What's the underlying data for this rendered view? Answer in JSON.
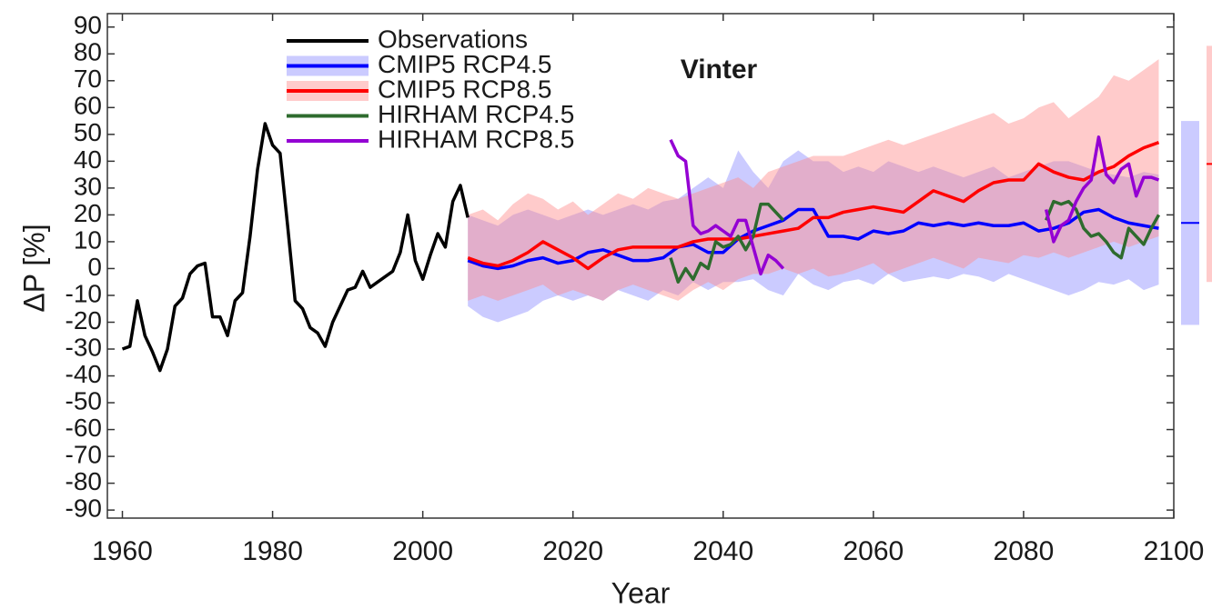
{
  "chart_data": {
    "type": "line",
    "title": "Vinter",
    "x_label": "Year",
    "y_label": "ΔP [%]",
    "xlim": [
      1958,
      2100
    ],
    "ylim": [
      -93,
      95
    ],
    "xticks": [
      1960,
      1980,
      2000,
      2020,
      2040,
      2060,
      2080,
      2100
    ],
    "yticks": [
      -90,
      -80,
      -70,
      -60,
      -50,
      -40,
      -30,
      -20,
      -10,
      0,
      10,
      20,
      30,
      40,
      50,
      60,
      70,
      80,
      90
    ],
    "legend": "upper left",
    "series": [
      {
        "name": "Observations",
        "color": "#000000",
        "x": [
          1960,
          1961,
          1962,
          1963,
          1964,
          1965,
          1966,
          1967,
          1968,
          1969,
          1970,
          1971,
          1972,
          1973,
          1974,
          1975,
          1976,
          1977,
          1978,
          1979,
          1980,
          1981,
          1982,
          1983,
          1984,
          1985,
          1986,
          1987,
          1988,
          1989,
          1990,
          1991,
          1992,
          1993,
          1994,
          1995,
          1996,
          1997,
          1998,
          1999,
          2000,
          2001,
          2002,
          2003,
          2004,
          2005,
          2006
        ],
        "values": [
          -30,
          -29,
          -12,
          -25,
          -31,
          -38,
          -30,
          -14,
          -11,
          -2,
          1,
          2,
          -18,
          -18,
          -25,
          -12,
          -9,
          12,
          37,
          54,
          46,
          43,
          16,
          -12,
          -15,
          -22,
          -24,
          -29,
          -20,
          -14,
          -8,
          -7,
          -1,
          -7,
          -5,
          -3,
          -1,
          6,
          20,
          3,
          -4,
          5,
          13,
          8,
          25,
          31,
          19
        ]
      },
      {
        "name": "CMIP5 RCP4.5",
        "color": "#0000ff",
        "band_color": "#8c8cff",
        "x": [
          2006,
          2008,
          2010,
          2012,
          2014,
          2016,
          2018,
          2020,
          2022,
          2024,
          2026,
          2028,
          2030,
          2032,
          2034,
          2036,
          2038,
          2040,
          2042,
          2044,
          2046,
          2048,
          2050,
          2052,
          2054,
          2056,
          2058,
          2060,
          2062,
          2064,
          2066,
          2068,
          2070,
          2072,
          2074,
          2076,
          2078,
          2080,
          2082,
          2084,
          2086,
          2088,
          2090,
          2092,
          2094,
          2096,
          2098
        ],
        "values": [
          3,
          1,
          0,
          1,
          3,
          4,
          2,
          3,
          6,
          7,
          5,
          3,
          3,
          4,
          8,
          9,
          6,
          6,
          11,
          14,
          16,
          18,
          22,
          22,
          12,
          12,
          11,
          14,
          13,
          14,
          17,
          16,
          17,
          16,
          17,
          16,
          16,
          17,
          14,
          15,
          17,
          21,
          22,
          19,
          17,
          16,
          15
        ],
        "band_low": [
          -14,
          -18,
          -20,
          -18,
          -16,
          -12,
          -10,
          -12,
          -10,
          -12,
          -8,
          -10,
          -12,
          -8,
          -10,
          -5,
          -8,
          -5,
          -5,
          -4,
          -8,
          -10,
          -2,
          -6,
          -8,
          -5,
          -4,
          -6,
          -2,
          -5,
          -4,
          -3,
          -4,
          -2,
          -3,
          -5,
          -2,
          -4,
          -6,
          -8,
          -10,
          -8,
          -5,
          -6,
          -4,
          -8,
          -6
        ],
        "band_high": [
          20,
          18,
          16,
          20,
          22,
          20,
          18,
          20,
          22,
          20,
          22,
          24,
          22,
          25,
          26,
          30,
          34,
          30,
          44,
          36,
          30,
          40,
          44,
          40,
          40,
          36,
          38,
          36,
          40,
          38,
          36,
          38,
          36,
          34,
          36,
          38,
          34,
          36,
          38,
          40,
          40,
          38,
          36,
          35,
          34,
          36,
          35
        ],
        "end_range": [
          -21,
          17,
          55
        ]
      },
      {
        "name": "CMIP5 RCP8.5",
        "color": "#ff0000",
        "band_color": "#ff8c8c",
        "x": [
          2006,
          2008,
          2010,
          2012,
          2014,
          2016,
          2018,
          2020,
          2022,
          2024,
          2026,
          2028,
          2030,
          2032,
          2034,
          2036,
          2038,
          2040,
          2042,
          2044,
          2046,
          2048,
          2050,
          2052,
          2054,
          2056,
          2058,
          2060,
          2062,
          2064,
          2066,
          2068,
          2070,
          2072,
          2074,
          2076,
          2078,
          2080,
          2082,
          2084,
          2086,
          2088,
          2090,
          2092,
          2094,
          2096,
          2098
        ],
        "values": [
          4,
          2,
          1,
          3,
          6,
          10,
          7,
          4,
          0,
          4,
          7,
          8,
          8,
          8,
          8,
          10,
          11,
          11,
          11,
          12,
          13,
          14,
          15,
          19,
          19,
          21,
          22,
          23,
          22,
          21,
          25,
          29,
          27,
          25,
          29,
          32,
          33,
          33,
          39,
          36,
          34,
          33,
          36,
          38,
          42,
          45,
          47
        ],
        "band_low": [
          -12,
          -10,
          -12,
          -10,
          -8,
          -6,
          -10,
          -8,
          -10,
          -12,
          -8,
          -6,
          -8,
          -10,
          -12,
          -8,
          -5,
          -8,
          -4,
          -2,
          -2,
          0,
          -2,
          0,
          -3,
          -2,
          0,
          2,
          -2,
          0,
          2,
          4,
          2,
          0,
          4,
          3,
          2,
          5,
          4,
          6,
          4,
          6,
          8,
          10,
          8,
          10,
          12
        ],
        "band_high": [
          20,
          22,
          18,
          24,
          28,
          26,
          22,
          25,
          20,
          24,
          28,
          26,
          30,
          28,
          26,
          28,
          30,
          32,
          34,
          30,
          36,
          38,
          40,
          42,
          42,
          42,
          44,
          46,
          48,
          46,
          48,
          50,
          52,
          54,
          56,
          58,
          54,
          56,
          60,
          62,
          56,
          60,
          64,
          72,
          70,
          74,
          78
        ],
        "end_range": [
          -5,
          39,
          83
        ]
      },
      {
        "name": "HIRHAM RCP4.5",
        "color": "#2e6b2e",
        "x": [
          2033,
          2034,
          2035,
          2036,
          2037,
          2038,
          2039,
          2040,
          2041,
          2042,
          2043,
          2044,
          2045,
          2046,
          2047,
          2048,
          null,
          2083,
          2084,
          2085,
          2086,
          2087,
          2088,
          2089,
          2090,
          2091,
          2092,
          2093,
          2094,
          2095,
          2096,
          2097,
          2098
        ],
        "values": [
          4,
          -5,
          0,
          -4,
          2,
          0,
          10,
          8,
          9,
          12,
          7,
          12,
          24,
          24,
          21,
          18,
          null,
          18,
          25,
          24,
          25,
          22,
          15,
          12,
          13,
          10,
          6,
          4,
          15,
          12,
          9,
          15,
          20
        ]
      },
      {
        "name": "HIRHAM RCP8.5",
        "color": "#9400d3",
        "x": [
          2033,
          2034,
          2035,
          2036,
          2037,
          2038,
          2039,
          2040,
          2041,
          2042,
          2043,
          2044,
          2045,
          2046,
          2047,
          2048,
          null,
          2083,
          2084,
          2085,
          2086,
          2087,
          2088,
          2089,
          2090,
          2091,
          2092,
          2093,
          2094,
          2095,
          2096,
          2097,
          2098
        ],
        "values": [
          48,
          42,
          40,
          16,
          13,
          14,
          16,
          14,
          12,
          18,
          18,
          8,
          -2,
          5,
          3,
          0,
          null,
          22,
          10,
          16,
          18,
          25,
          30,
          33,
          49,
          35,
          32,
          37,
          39,
          27,
          34,
          34,
          33
        ]
      }
    ]
  }
}
